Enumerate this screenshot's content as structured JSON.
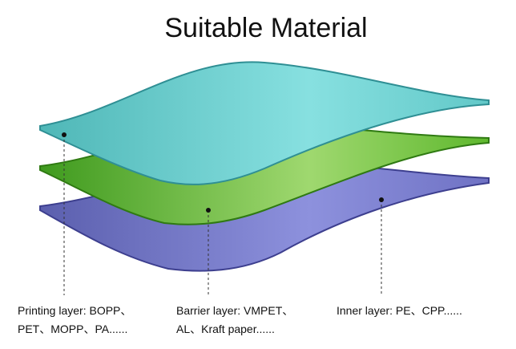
{
  "header": {
    "title": "Suitable Material"
  },
  "layers": [
    {
      "lines": [
        "Printing layer: BOPP、",
        "PET、MOPP、PA......"
      ]
    },
    {
      "lines": [
        "Barrier layer: VMPET、",
        "AL、Kraft paper......"
      ]
    },
    {
      "lines": [
        "Inner layer: PE、CPP......"
      ]
    }
  ]
}
